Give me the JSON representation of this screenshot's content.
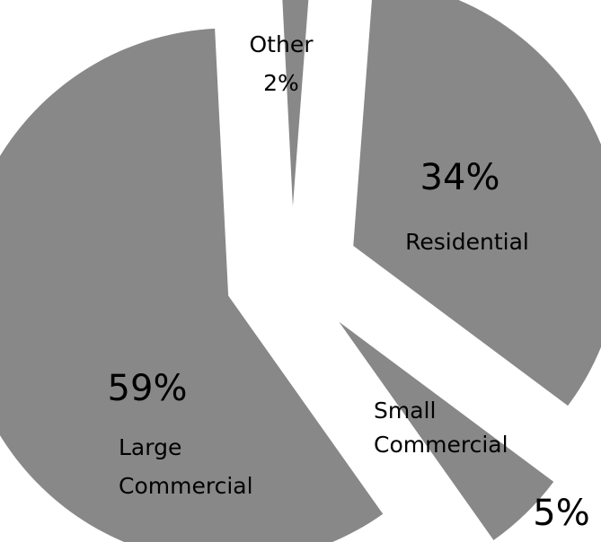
{
  "chart_data": {
    "type": "pie",
    "title": "",
    "slice_color": "#888888",
    "background_color": "#ffffff",
    "slices": [
      {
        "name": "Residential",
        "value": 34,
        "value_label": "34%"
      },
      {
        "name": "Small Commercial",
        "value": 5,
        "value_label": "5%"
      },
      {
        "name": "Large Commercial",
        "value": 59,
        "value_label": "59%"
      },
      {
        "name": "Other",
        "value": 2,
        "value_label": "2%"
      }
    ]
  }
}
